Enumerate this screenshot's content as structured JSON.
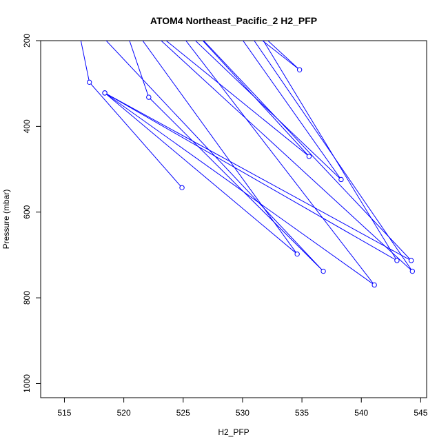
{
  "chart_data": {
    "type": "line",
    "title": "ATOM4 Northeast_Pacific_2 H2_PFP",
    "xlabel": "H2_PFP",
    "ylabel": "Pressure (mbar)",
    "xlim": [
      513,
      545.5
    ],
    "ylim": [
      1033,
      200
    ],
    "y_reversed": true,
    "x_ticks": [
      515,
      520,
      525,
      530,
      535,
      540,
      545
    ],
    "y_ticks": [
      200,
      400,
      600,
      800,
      1000
    ],
    "grid": false,
    "line_color": "#0000ff",
    "marker": "open-circle",
    "points": [
      {
        "x": 524.9,
        "y": 543
      },
      {
        "x": 517.1,
        "y": 297
      },
      {
        "x": 515.8,
        "y": 120
      },
      {
        "x": 536.8,
        "y": 738
      },
      {
        "x": 522.1,
        "y": 332
      },
      {
        "x": 519.5,
        "y": 120
      },
      {
        "x": 534.6,
        "y": 698
      },
      {
        "x": 518.4,
        "y": 322
      },
      {
        "x": 544.2,
        "y": 713
      },
      {
        "x": 524.0,
        "y": 120
      },
      {
        "x": 535.6,
        "y": 470
      },
      {
        "x": 520.0,
        "y": 120
      },
      {
        "x": 544.3,
        "y": 738
      },
      {
        "x": 529.0,
        "y": 120
      },
      {
        "x": 534.8,
        "y": 268
      },
      {
        "x": 528.0,
        "y": 120
      },
      {
        "x": 538.3,
        "y": 524
      },
      {
        "x": 523.0,
        "y": 120
      },
      {
        "x": 541.1,
        "y": 770
      },
      {
        "x": 518.4,
        "y": 322
      },
      {
        "x": 543.0,
        "y": 713
      },
      {
        "x": 530.0,
        "y": 120
      }
    ]
  }
}
